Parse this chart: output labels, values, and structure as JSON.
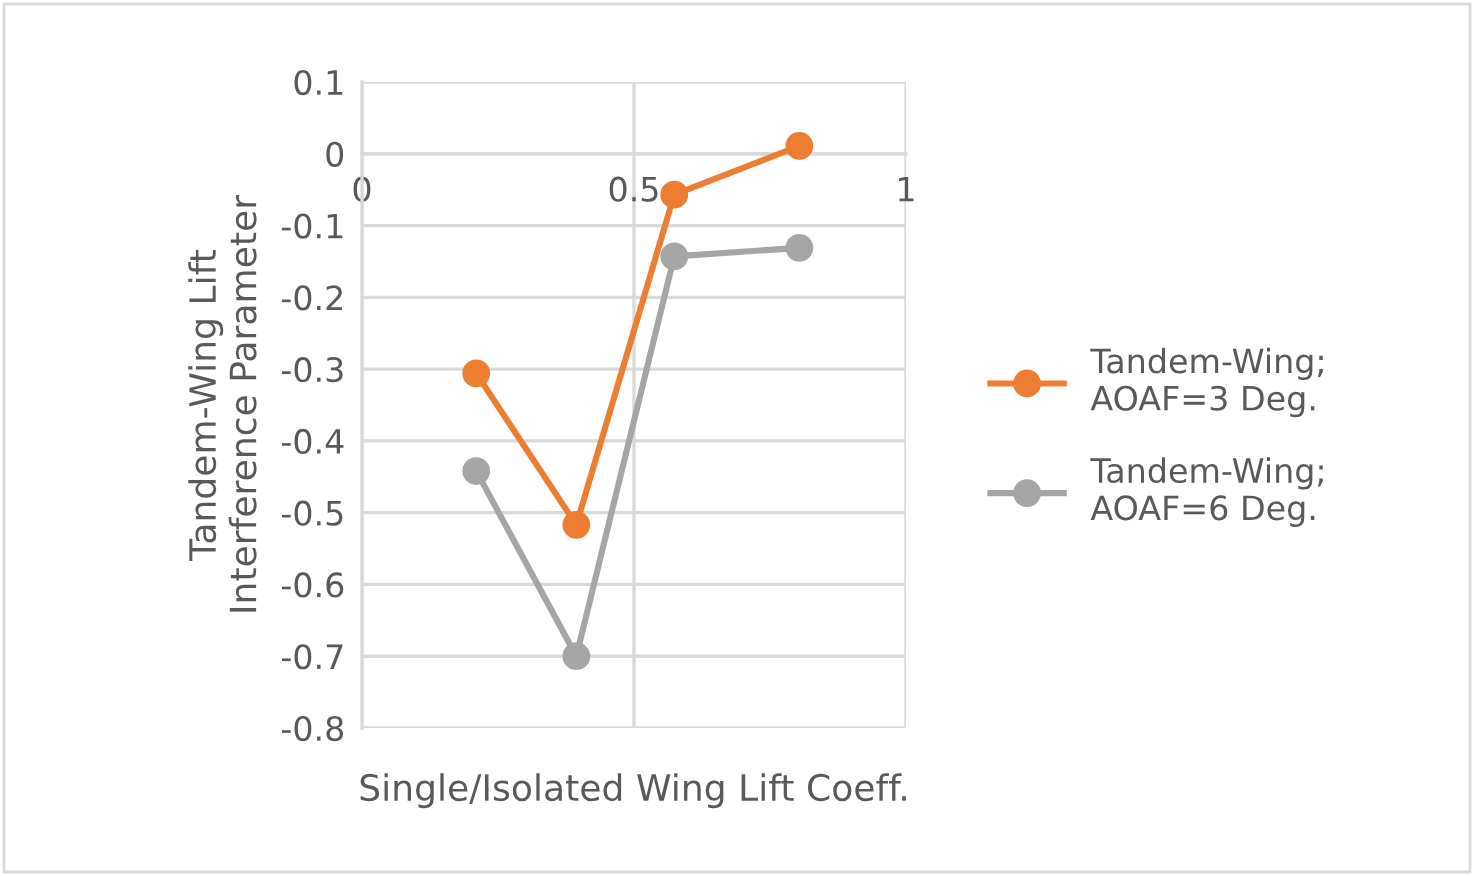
{
  "chart_data": {
    "type": "line",
    "xlabel": "Single/Isolated Wing Lift Coeff.",
    "ylabel": "Tandem-Wing Lift\nInterference Parameter",
    "series": [
      {
        "name": "Tandem-Wing;\nAOAF=3 Deg.",
        "color": "#ed7d31",
        "x": [
          0.21,
          0.394,
          0.574,
          0.804
        ],
        "values": [
          -0.306,
          -0.517,
          -0.057,
          0.011
        ]
      },
      {
        "name": "Tandem-Wing;\nAOAF=6 Deg.",
        "color": "#a5a5a5",
        "x": [
          0.21,
          0.394,
          0.574,
          0.804
        ],
        "values": [
          -0.442,
          -0.7,
          -0.143,
          -0.131
        ]
      }
    ],
    "xlim": [
      0,
      1
    ],
    "xticks": [
      0,
      0.5,
      1
    ],
    "ylim": [
      -0.8,
      0.1
    ],
    "yticks": [
      0.1,
      0,
      -0.1,
      -0.2,
      -0.3,
      -0.4,
      -0.5,
      -0.6,
      -0.7,
      -0.8
    ],
    "grid": true,
    "legend": "right",
    "marker": "circle",
    "line_style": "solid"
  }
}
